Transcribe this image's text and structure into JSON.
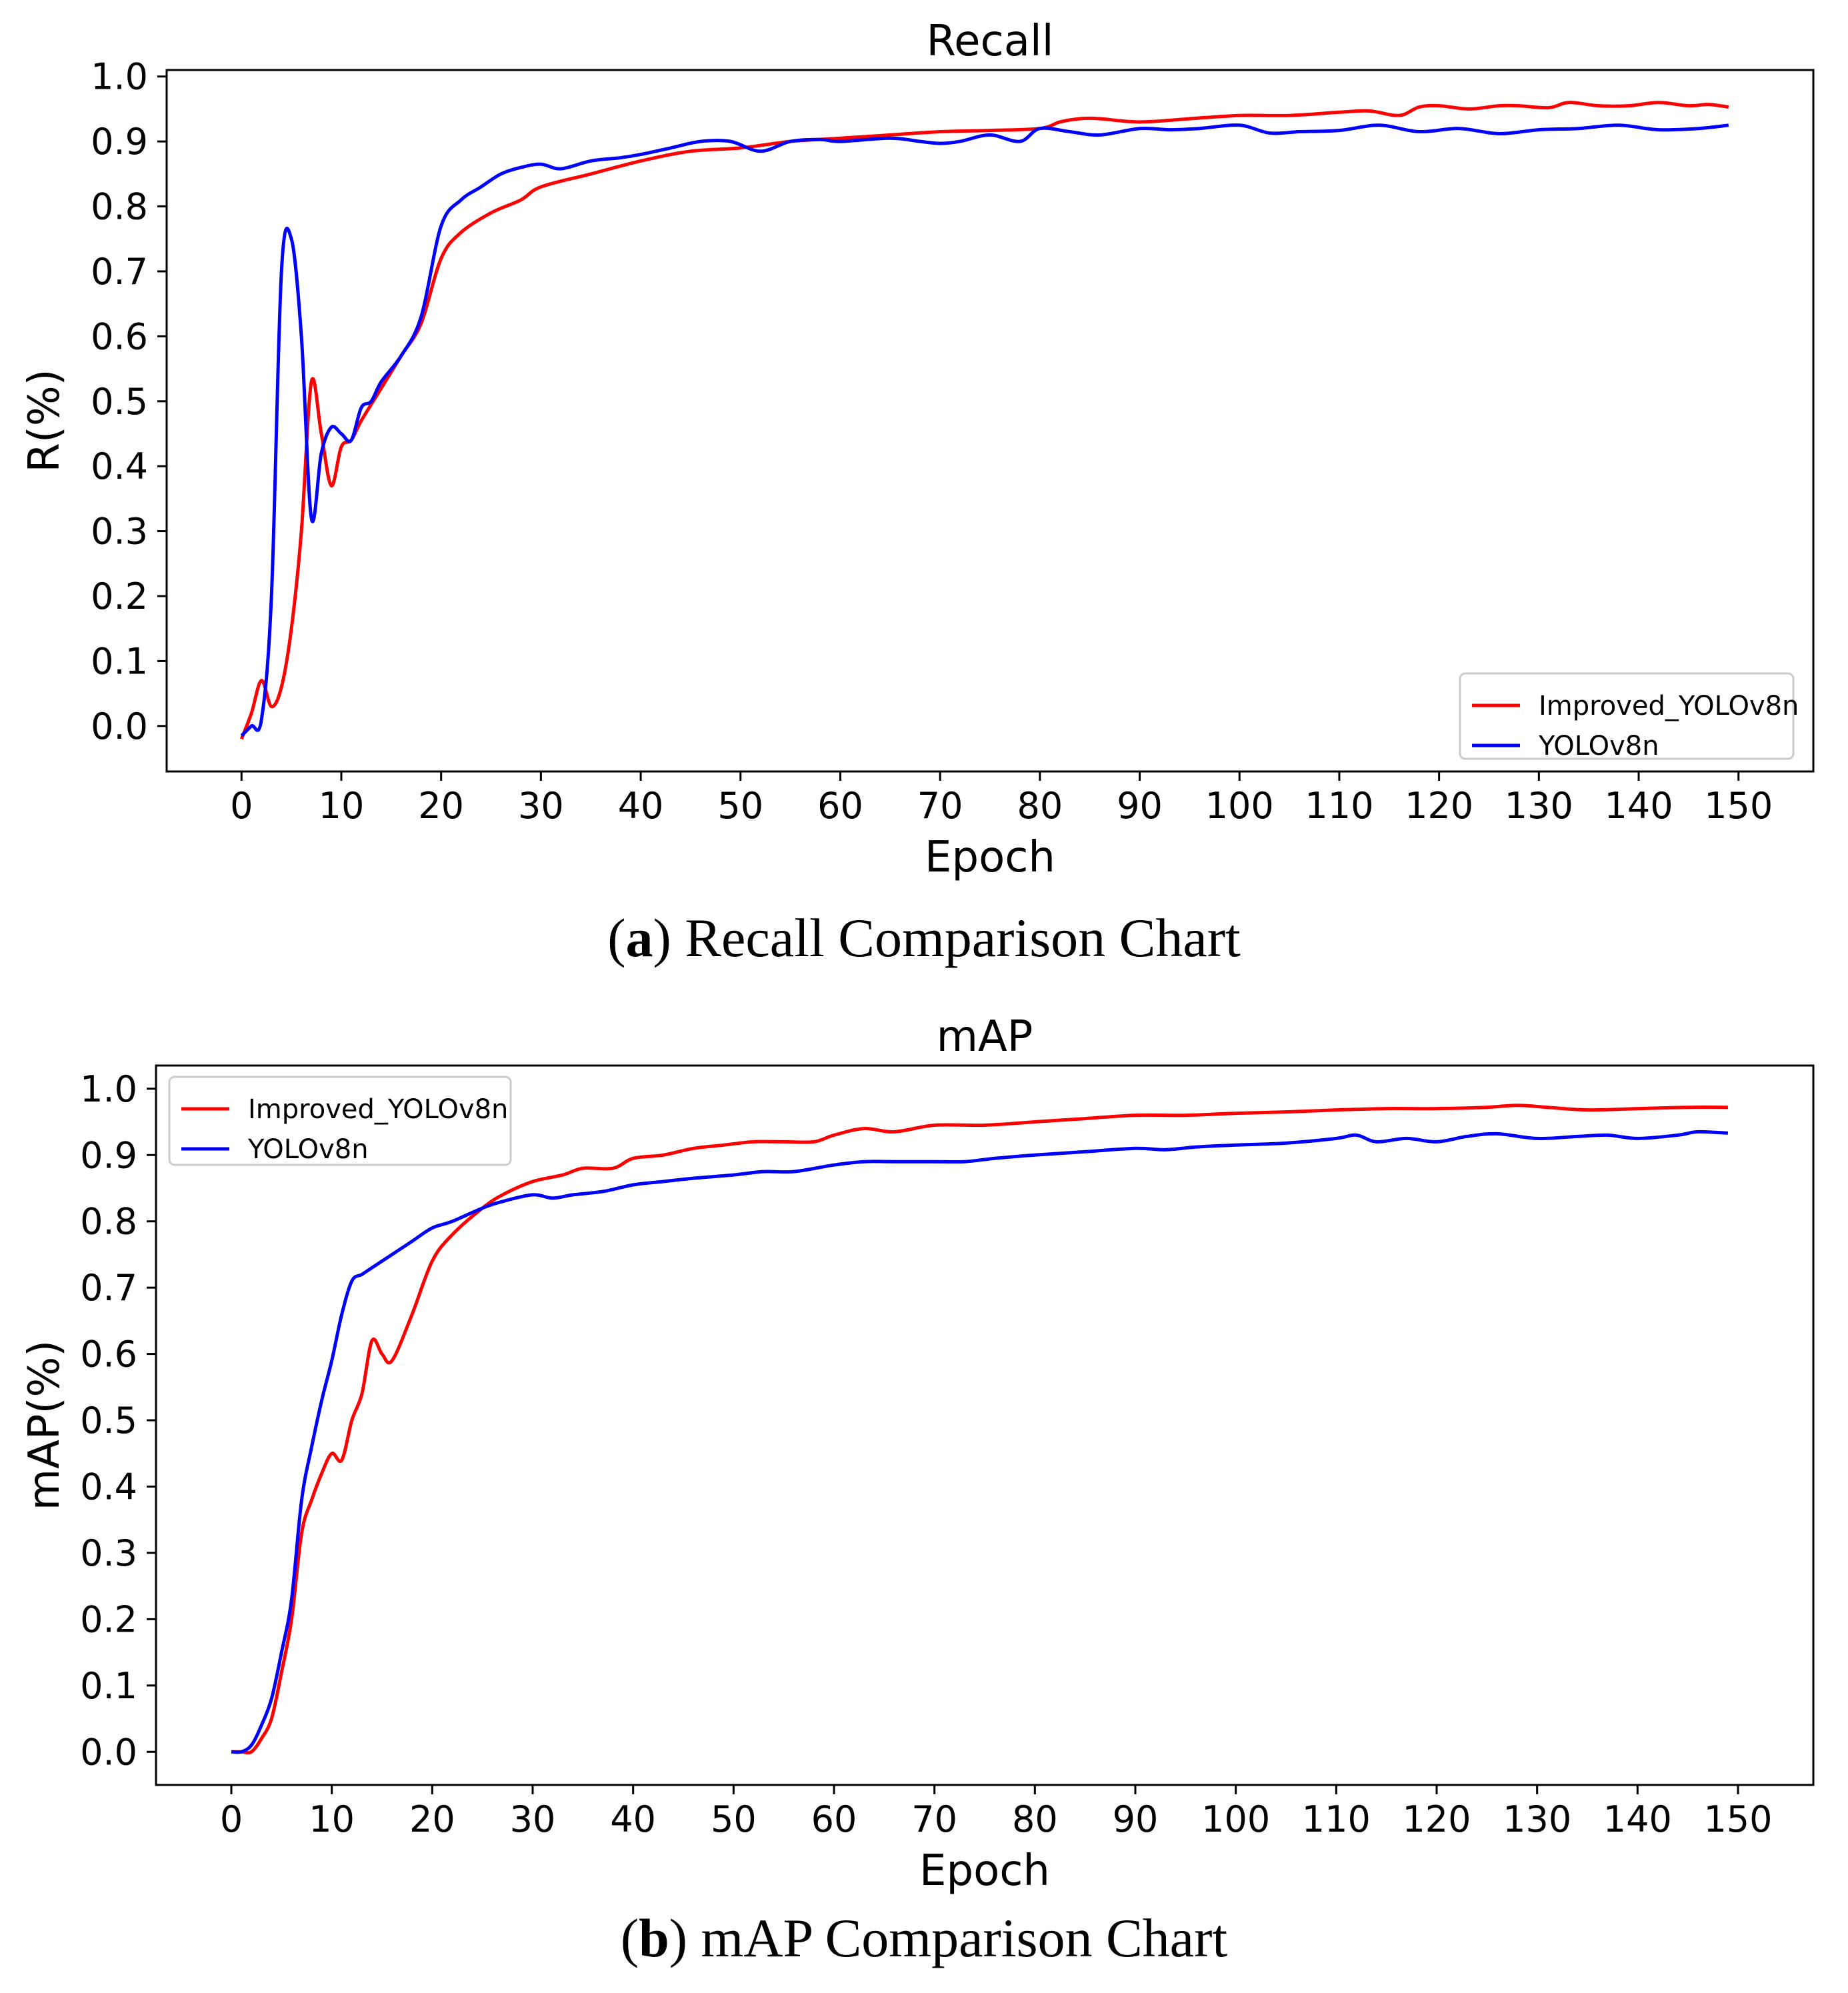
{
  "figure": {
    "caption_a": {
      "letter": "a",
      "text": "Recall Comparison Chart"
    },
    "caption_b": {
      "letter": "b",
      "text": "mAP Comparison Chart"
    }
  },
  "colors": {
    "improved": "#ff0000",
    "baseline": "#0000ff",
    "axis": "#000000"
  },
  "chart_data": [
    {
      "type": "line",
      "title": "Recall",
      "xlabel": "Epoch",
      "ylabel": "R(%)",
      "xlim": [
        -7.5,
        157.5
      ],
      "ylim": [
        -0.07,
        1.01
      ],
      "xticks": [
        0,
        10,
        20,
        30,
        40,
        50,
        60,
        70,
        80,
        90,
        100,
        110,
        120,
        130,
        140,
        150
      ],
      "yticks": [
        0.0,
        0.1,
        0.2,
        0.3,
        0.4,
        0.5,
        0.6,
        0.7,
        0.8,
        0.9,
        1.0
      ],
      "ytick_labels": [
        "0.0",
        "0.1",
        "0.2",
        "0.3",
        "0.4",
        "0.5",
        "0.6",
        "0.7",
        "0.8",
        "0.9",
        "1.0"
      ],
      "legend_position": "lower-right",
      "series": [
        {
          "name": "Improved_YOLOv8n",
          "color": "#ff0000",
          "x": [
            0,
            1,
            2,
            3,
            4,
            5,
            6,
            7,
            8,
            9,
            10,
            11,
            12,
            14,
            16,
            18,
            20,
            22,
            25,
            28,
            30,
            35,
            40,
            45,
            50,
            55,
            60,
            65,
            70,
            75,
            80,
            82,
            84,
            86,
            90,
            95,
            100,
            105,
            110,
            113,
            116,
            118,
            120,
            123,
            126,
            128,
            131,
            133,
            136,
            139,
            142,
            145,
            147,
            149
          ],
          "y": [
            -0.02,
            0.02,
            0.07,
            0.03,
            0.06,
            0.15,
            0.3,
            0.53,
            0.45,
            0.37,
            0.43,
            0.44,
            0.47,
            0.52,
            0.57,
            0.62,
            0.72,
            0.76,
            0.79,
            0.81,
            0.83,
            0.85,
            0.87,
            0.885,
            0.89,
            0.9,
            0.905,
            0.91,
            0.915,
            0.917,
            0.92,
            0.93,
            0.935,
            0.935,
            0.93,
            0.935,
            0.94,
            0.94,
            0.945,
            0.947,
            0.94,
            0.953,
            0.955,
            0.95,
            0.955,
            0.955,
            0.952,
            0.96,
            0.955,
            0.955,
            0.96,
            0.955,
            0.957,
            0.953
          ]
        },
        {
          "name": "YOLOv8n",
          "color": "#0000ff",
          "x": [
            0,
            1,
            2,
            3,
            4,
            5,
            6,
            7,
            8,
            9,
            10,
            11,
            12,
            13,
            14,
            16,
            18,
            20,
            22,
            24,
            26,
            28,
            30,
            32,
            35,
            38,
            40,
            43,
            46,
            49,
            52,
            55,
            58,
            60,
            65,
            68,
            70,
            72,
            75,
            78,
            80,
            83,
            86,
            90,
            93,
            96,
            100,
            103,
            106,
            110,
            114,
            118,
            122,
            126,
            130,
            134,
            138,
            142,
            146,
            149
          ],
          "y": [
            -0.015,
            0.0,
            0.01,
            0.2,
            0.7,
            0.75,
            0.6,
            0.32,
            0.42,
            0.46,
            0.45,
            0.44,
            0.49,
            0.5,
            0.53,
            0.57,
            0.63,
            0.77,
            0.81,
            0.83,
            0.85,
            0.86,
            0.865,
            0.858,
            0.87,
            0.875,
            0.88,
            0.89,
            0.9,
            0.9,
            0.885,
            0.9,
            0.903,
            0.9,
            0.905,
            0.9,
            0.897,
            0.9,
            0.91,
            0.9,
            0.92,
            0.915,
            0.91,
            0.92,
            0.918,
            0.92,
            0.925,
            0.913,
            0.915,
            0.917,
            0.925,
            0.915,
            0.92,
            0.912,
            0.918,
            0.92,
            0.925,
            0.918,
            0.92,
            0.925
          ]
        }
      ]
    },
    {
      "type": "line",
      "title": "mAP",
      "xlabel": "Epoch",
      "ylabel": "mAP(%)",
      "xlim": [
        -7.5,
        157.5
      ],
      "ylim": [
        -0.05,
        1.035
      ],
      "xticks": [
        0,
        10,
        20,
        30,
        40,
        50,
        60,
        70,
        80,
        90,
        100,
        110,
        120,
        130,
        140,
        150
      ],
      "yticks": [
        0.0,
        0.1,
        0.2,
        0.3,
        0.4,
        0.5,
        0.6,
        0.7,
        0.8,
        0.9,
        1.0
      ],
      "ytick_labels": [
        "0.0",
        "0.1",
        "0.2",
        "0.3",
        "0.4",
        "0.5",
        "0.6",
        "0.7",
        "0.8",
        "0.9",
        "1.0"
      ],
      "legend_position": "upper-left",
      "series": [
        {
          "name": "Improved_YOLOv8n",
          "color": "#ff0000",
          "x": [
            0,
            1,
            2,
            3,
            4,
            5,
            6,
            7,
            8,
            9,
            10,
            11,
            12,
            13,
            14,
            15,
            16,
            18,
            20,
            22,
            25,
            27,
            30,
            33,
            35,
            38,
            40,
            43,
            46,
            49,
            52,
            55,
            58,
            60,
            63,
            66,
            70,
            75,
            80,
            85,
            90,
            95,
            100,
            105,
            110,
            115,
            120,
            125,
            128,
            131,
            135,
            140,
            145,
            149
          ],
          "y": [
            0.0,
            0.0,
            0.0,
            0.02,
            0.05,
            0.12,
            0.2,
            0.33,
            0.38,
            0.42,
            0.45,
            0.44,
            0.5,
            0.54,
            0.62,
            0.6,
            0.59,
            0.66,
            0.74,
            0.78,
            0.82,
            0.84,
            0.86,
            0.87,
            0.88,
            0.88,
            0.895,
            0.9,
            0.91,
            0.915,
            0.92,
            0.92,
            0.92,
            0.93,
            0.94,
            0.935,
            0.945,
            0.945,
            0.95,
            0.955,
            0.96,
            0.96,
            0.963,
            0.965,
            0.968,
            0.97,
            0.97,
            0.972,
            0.975,
            0.972,
            0.968,
            0.97,
            0.972,
            0.972
          ]
        },
        {
          "name": "YOLOv8n",
          "color": "#0000ff",
          "x": [
            0,
            1,
            2,
            3,
            4,
            5,
            6,
            7,
            8,
            9,
            10,
            11,
            12,
            13,
            14,
            16,
            18,
            20,
            22,
            25,
            27,
            30,
            32,
            34,
            37,
            40,
            43,
            46,
            50,
            53,
            56,
            60,
            63,
            66,
            70,
            73,
            76,
            80,
            85,
            90,
            93,
            96,
            100,
            105,
            110,
            112,
            114,
            117,
            120,
            123,
            126,
            130,
            134,
            137,
            140,
            144,
            146,
            149
          ],
          "y": [
            0.0,
            0.0,
            0.01,
            0.04,
            0.08,
            0.15,
            0.23,
            0.38,
            0.46,
            0.53,
            0.59,
            0.66,
            0.71,
            0.72,
            0.73,
            0.75,
            0.77,
            0.79,
            0.8,
            0.82,
            0.83,
            0.84,
            0.835,
            0.84,
            0.845,
            0.855,
            0.86,
            0.865,
            0.87,
            0.875,
            0.875,
            0.885,
            0.89,
            0.89,
            0.89,
            0.89,
            0.895,
            0.9,
            0.905,
            0.91,
            0.908,
            0.912,
            0.915,
            0.918,
            0.925,
            0.93,
            0.92,
            0.925,
            0.92,
            0.928,
            0.932,
            0.925,
            0.928,
            0.93,
            0.925,
            0.93,
            0.935,
            0.933
          ]
        }
      ]
    }
  ]
}
